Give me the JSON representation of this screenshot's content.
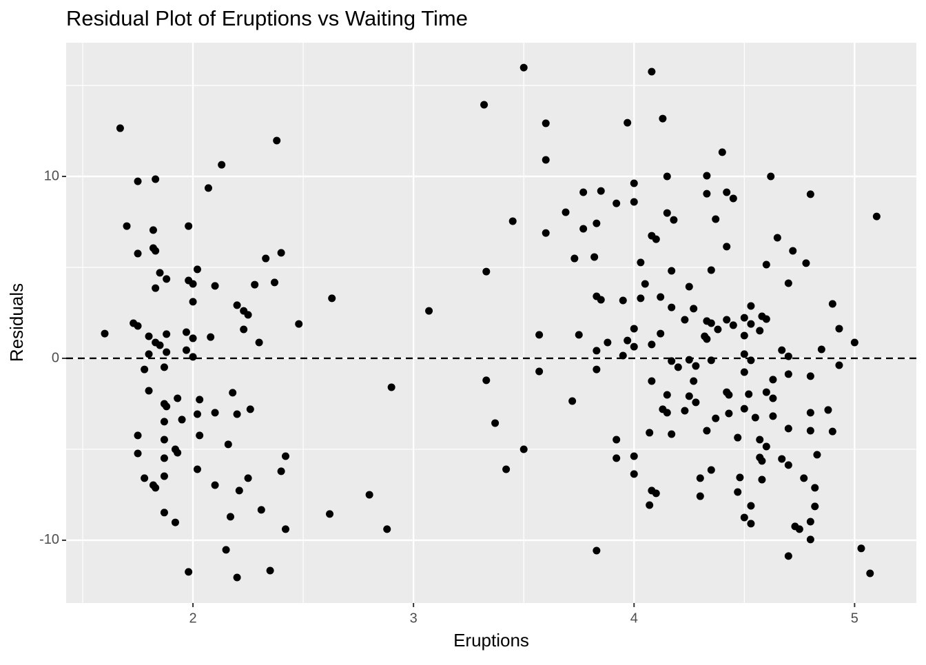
{
  "chart_data": {
    "type": "scatter",
    "title": "Residual Plot of Eruptions vs Waiting Time",
    "x_label": "Eruptions",
    "y_label": "Residuals",
    "xlim": [
      1.425,
      5.28
    ],
    "ylim": [
      -13.45,
      17.35
    ],
    "xticks": [
      2,
      3,
      4,
      5
    ],
    "yticks": [
      -10,
      0,
      10
    ],
    "x_minor_grid": [
      1.5,
      2.5,
      3.5,
      4.5
    ],
    "y_minor_grid": [
      -5,
      5,
      15
    ],
    "grid": true,
    "color": "#000000",
    "hline": 0,
    "x": [
      1.6,
      1.67,
      1.7,
      1.73,
      1.75,
      1.75,
      1.75,
      1.75,
      1.75,
      1.78,
      1.78,
      1.8,
      1.8,
      1.8,
      1.82,
      1.82,
      1.82,
      1.83,
      1.83,
      1.83,
      1.83,
      1.83,
      1.85,
      1.85,
      1.87,
      1.87,
      1.87,
      1.87,
      1.87,
      1.87,
      1.87,
      1.88,
      1.88,
      1.88,
      1.88,
      1.92,
      1.92,
      1.93,
      1.93,
      1.95,
      1.97,
      1.97,
      1.98,
      1.98,
      1.98,
      2.0,
      2.0,
      2.0,
      2.0,
      2.02,
      2.02,
      2.02,
      2.03,
      2.03,
      2.07,
      2.08,
      2.1,
      2.1,
      2.1,
      2.13,
      2.16,
      2.17,
      2.15,
      2.18,
      2.2,
      2.2,
      2.2,
      2.21,
      2.23,
      2.23,
      2.25,
      2.25,
      2.26,
      2.28,
      2.3,
      2.31,
      2.33,
      2.35,
      2.37,
      2.38,
      2.4,
      2.4,
      2.42,
      2.42,
      2.48,
      2.62,
      2.63,
      2.8,
      2.88,
      2.9,
      3.07,
      3.32,
      3.33,
      3.33,
      3.37,
      3.42,
      3.45,
      3.5,
      3.5,
      3.57,
      3.57,
      3.6,
      3.6,
      3.6,
      3.69,
      3.72,
      3.73,
      3.75,
      3.77,
      3.77,
      3.82,
      3.83,
      3.83,
      3.83,
      3.83,
      3.83,
      3.85,
      3.85,
      3.88,
      3.92,
      3.92,
      3.92,
      3.95,
      3.95,
      3.97,
      3.97,
      4.0,
      4.0,
      4.0,
      4.0,
      4.0,
      4.0,
      4.03,
      4.05,
      4.03,
      4.07,
      4.07,
      4.08,
      4.08,
      4.08,
      4.08,
      4.08,
      4.1,
      4.1,
      4.12,
      4.12,
      4.13,
      4.13,
      4.15,
      4.15,
      4.15,
      4.15,
      4.17,
      4.17,
      4.17,
      4.17,
      4.18,
      4.2,
      4.23,
      4.23,
      4.25,
      4.25,
      4.25,
      4.27,
      4.27,
      4.28,
      4.28,
      4.3,
      4.3,
      4.32,
      4.33,
      4.33,
      4.33,
      4.33,
      4.33,
      4.35,
      4.35,
      4.35,
      4.35,
      4.37,
      4.37,
      4.38,
      4.4,
      4.42,
      4.42,
      4.42,
      4.42,
      4.43,
      4.43,
      4.45,
      4.45,
      4.47,
      4.47,
      4.48,
      4.5,
      4.5,
      4.5,
      4.5,
      4.5,
      4.5,
      4.52,
      4.53,
      4.53,
      4.53,
      4.53,
      4.53,
      4.55,
      4.57,
      4.57,
      4.57,
      4.58,
      4.58,
      4.58,
      4.6,
      4.6,
      4.6,
      4.6,
      4.62,
      4.63,
      4.63,
      4.63,
      4.65,
      4.67,
      4.67,
      4.7,
      4.7,
      4.7,
      4.7,
      4.7,
      4.7,
      4.72,
      4.73,
      4.75,
      4.77,
      4.78,
      4.8,
      4.8,
      4.8,
      4.8,
      4.8,
      4.8,
      4.82,
      4.82,
      4.83,
      4.85,
      4.88,
      4.9,
      4.9,
      4.93,
      4.93,
      5.0,
      5.03,
      5.07,
      5.1
    ],
    "values": [
      1.36,
      12.65,
      7.27,
      1.93,
      1.78,
      9.73,
      5.76,
      -4.24,
      -5.23,
      -6.59,
      -0.61,
      1.21,
      -1.78,
      0.23,
      7.05,
      6.06,
      -6.97,
      9.85,
      5.91,
      3.86,
      0.87,
      -7.12,
      4.7,
      0.72,
      -0.49,
      -2.5,
      -3.48,
      -4.47,
      -5.49,
      -6.48,
      -8.48,
      4.36,
      1.33,
      0.34,
      -2.65,
      -5.0,
      -9.02,
      -2.2,
      -5.19,
      -3.37,
      1.44,
      0.45,
      7.27,
      4.28,
      -11.74,
      4.09,
      3.11,
      1.1,
      0.08,
      4.89,
      -3.07,
      -6.1,
      -2.27,
      -4.24,
      9.36,
      1.17,
      3.98,
      -2.99,
      -6.97,
      10.64,
      -4.73,
      -8.71,
      -10.53,
      -1.89,
      2.92,
      -3.07,
      -12.05,
      -7.27,
      1.59,
      2.61,
      2.39,
      -6.59,
      -2.8,
      4.05,
      0.87,
      -8.33,
      5.49,
      -11.67,
      4.17,
      11.97,
      5.8,
      -6.21,
      -5.38,
      -9.39,
      1.89,
      -8.56,
      3.3,
      -7.5,
      -9.39,
      -1.59,
      2.61,
      13.94,
      -1.21,
      4.77,
      -3.56,
      -6.1,
      7.54,
      15.98,
      -5.0,
      1.29,
      -0.72,
      12.92,
      10.91,
      6.89,
      8.03,
      -2.35,
      5.49,
      1.29,
      9.13,
      7.12,
      5.57,
      7.42,
      3.41,
      0.42,
      -0.61,
      -10.57,
      9.2,
      3.22,
      0.87,
      8.52,
      -4.47,
      -5.49,
      3.18,
      0.15,
      0.98,
      12.95,
      8.6,
      9.62,
      1.63,
      0.64,
      -5.38,
      -6.36,
      5.27,
      4.09,
      3.3,
      -4.09,
      -8.07,
      15.76,
      6.74,
      0.76,
      -1.25,
      -7.27,
      6.55,
      -7.42,
      3.37,
      1.36,
      13.18,
      -2.8,
      7.99,
      10.0,
      -2.01,
      -2.99,
      4.81,
      2.8,
      -0.15,
      -4.17,
      7.61,
      -0.49,
      2.12,
      -2.88,
      3.94,
      -0.08,
      -2.08,
      2.73,
      -1.25,
      -0.42,
      -2.42,
      -6.59,
      -7.58,
      1.21,
      10.04,
      9.05,
      2.05,
      1.06,
      -3.98,
      4.85,
      1.93,
      -0.11,
      -6.14,
      7.65,
      -3.3,
      1.59,
      11.33,
      6.14,
      2.12,
      -1.86,
      9.13,
      -2.01,
      -3.03,
      8.79,
      1.82,
      -4.36,
      -7.35,
      -6.55,
      2.23,
      1.25,
      0.23,
      -0.76,
      -2.77,
      -8.75,
      -1.97,
      2.88,
      1.89,
      -0.11,
      -8.11,
      -9.09,
      -3.26,
      1.52,
      -4.47,
      -5.45,
      2.31,
      -5.64,
      -6.67,
      5.15,
      2.16,
      -1.86,
      -4.85,
      10.0,
      -3.18,
      -1.17,
      -2.2,
      6.63,
      0.45,
      -5.53,
      4.13,
      0.11,
      -0.87,
      -3.86,
      -5.87,
      -10.87,
      5.91,
      -9.24,
      -9.39,
      -6.59,
      5.23,
      9.02,
      -0.98,
      -2.99,
      -3.98,
      -8.98,
      -9.96,
      -7.12,
      -8.14,
      -5.3,
      0.49,
      -2.84,
      2.99,
      -4.02,
      1.63,
      -0.38,
      0.87,
      -10.45,
      -11.82,
      7.8
    ]
  }
}
